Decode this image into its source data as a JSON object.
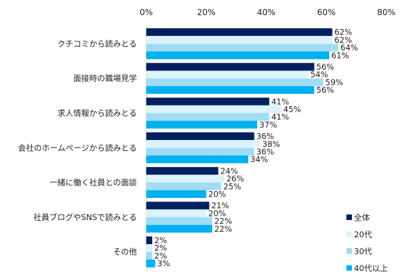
{
  "chart_data": {
    "type": "bar",
    "orientation": "horizontal",
    "title": "",
    "xlabel": "",
    "ylabel": "",
    "xlim": [
      0,
      80
    ],
    "ticks": [
      0,
      20,
      40,
      60,
      80
    ],
    "tick_labels": [
      "0%",
      "20%",
      "40%",
      "60%",
      "80%"
    ],
    "grid": false,
    "legend_position": "bottom-right",
    "categories": [
      "クチコミから読みとる",
      "面接時の職場見学",
      "求人情報から読みとる",
      "会社のホームページから読みとる",
      "一緒に働く社員との面談",
      "社員ブログやSNSで読みとる",
      "その他"
    ],
    "series": [
      {
        "name": "全体",
        "color": "#002060",
        "values": [
          62,
          56,
          41,
          36,
          24,
          21,
          2
        ]
      },
      {
        "name": "20代",
        "color": "#DDF3FC",
        "values": [
          62,
          54,
          45,
          38,
          26,
          20,
          2
        ]
      },
      {
        "name": "30代",
        "color": "#A0DDF5",
        "values": [
          64,
          59,
          41,
          36,
          25,
          22,
          2
        ]
      },
      {
        "name": "40代以上",
        "color": "#00B0F0",
        "values": [
          61,
          56,
          37,
          34,
          20,
          22,
          3
        ]
      }
    ],
    "value_suffix": "%"
  }
}
